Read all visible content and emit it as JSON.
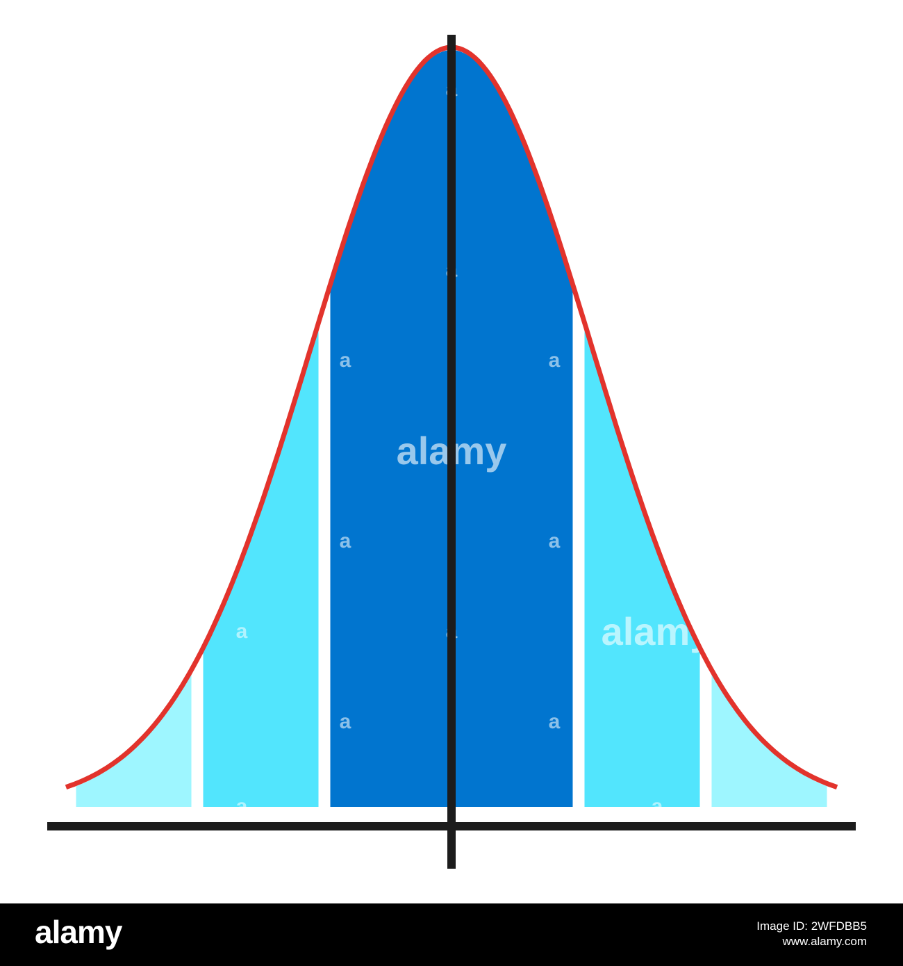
{
  "diagram": {
    "description_type": "normal distribution bell curve",
    "colors": {
      "outer_band": "#9ef6ff",
      "middle_band": "#52e5fd",
      "center_band": "#0175cf",
      "curve": "#e2332c",
      "axes": "#1c1c1c",
      "background": "#ffffff"
    },
    "bands": [
      {
        "z_from": -3,
        "z_to": -2,
        "tone": "outer_band"
      },
      {
        "z_from": -2,
        "z_to": -1,
        "tone": "middle_band"
      },
      {
        "z_from": -1,
        "z_to": 0,
        "tone": "center_band"
      },
      {
        "z_from": 0,
        "z_to": 1,
        "tone": "center_band"
      },
      {
        "z_from": 1,
        "z_to": 2,
        "tone": "middle_band"
      },
      {
        "z_from": 2,
        "z_to": 3,
        "tone": "outer_band"
      }
    ]
  },
  "watermark": {
    "small_mark": "a",
    "big_mark": "alamy"
  },
  "footer": {
    "logo": "alamy",
    "line1": "Image ID: 2WFDBB5",
    "line2": "www.alamy.com"
  }
}
